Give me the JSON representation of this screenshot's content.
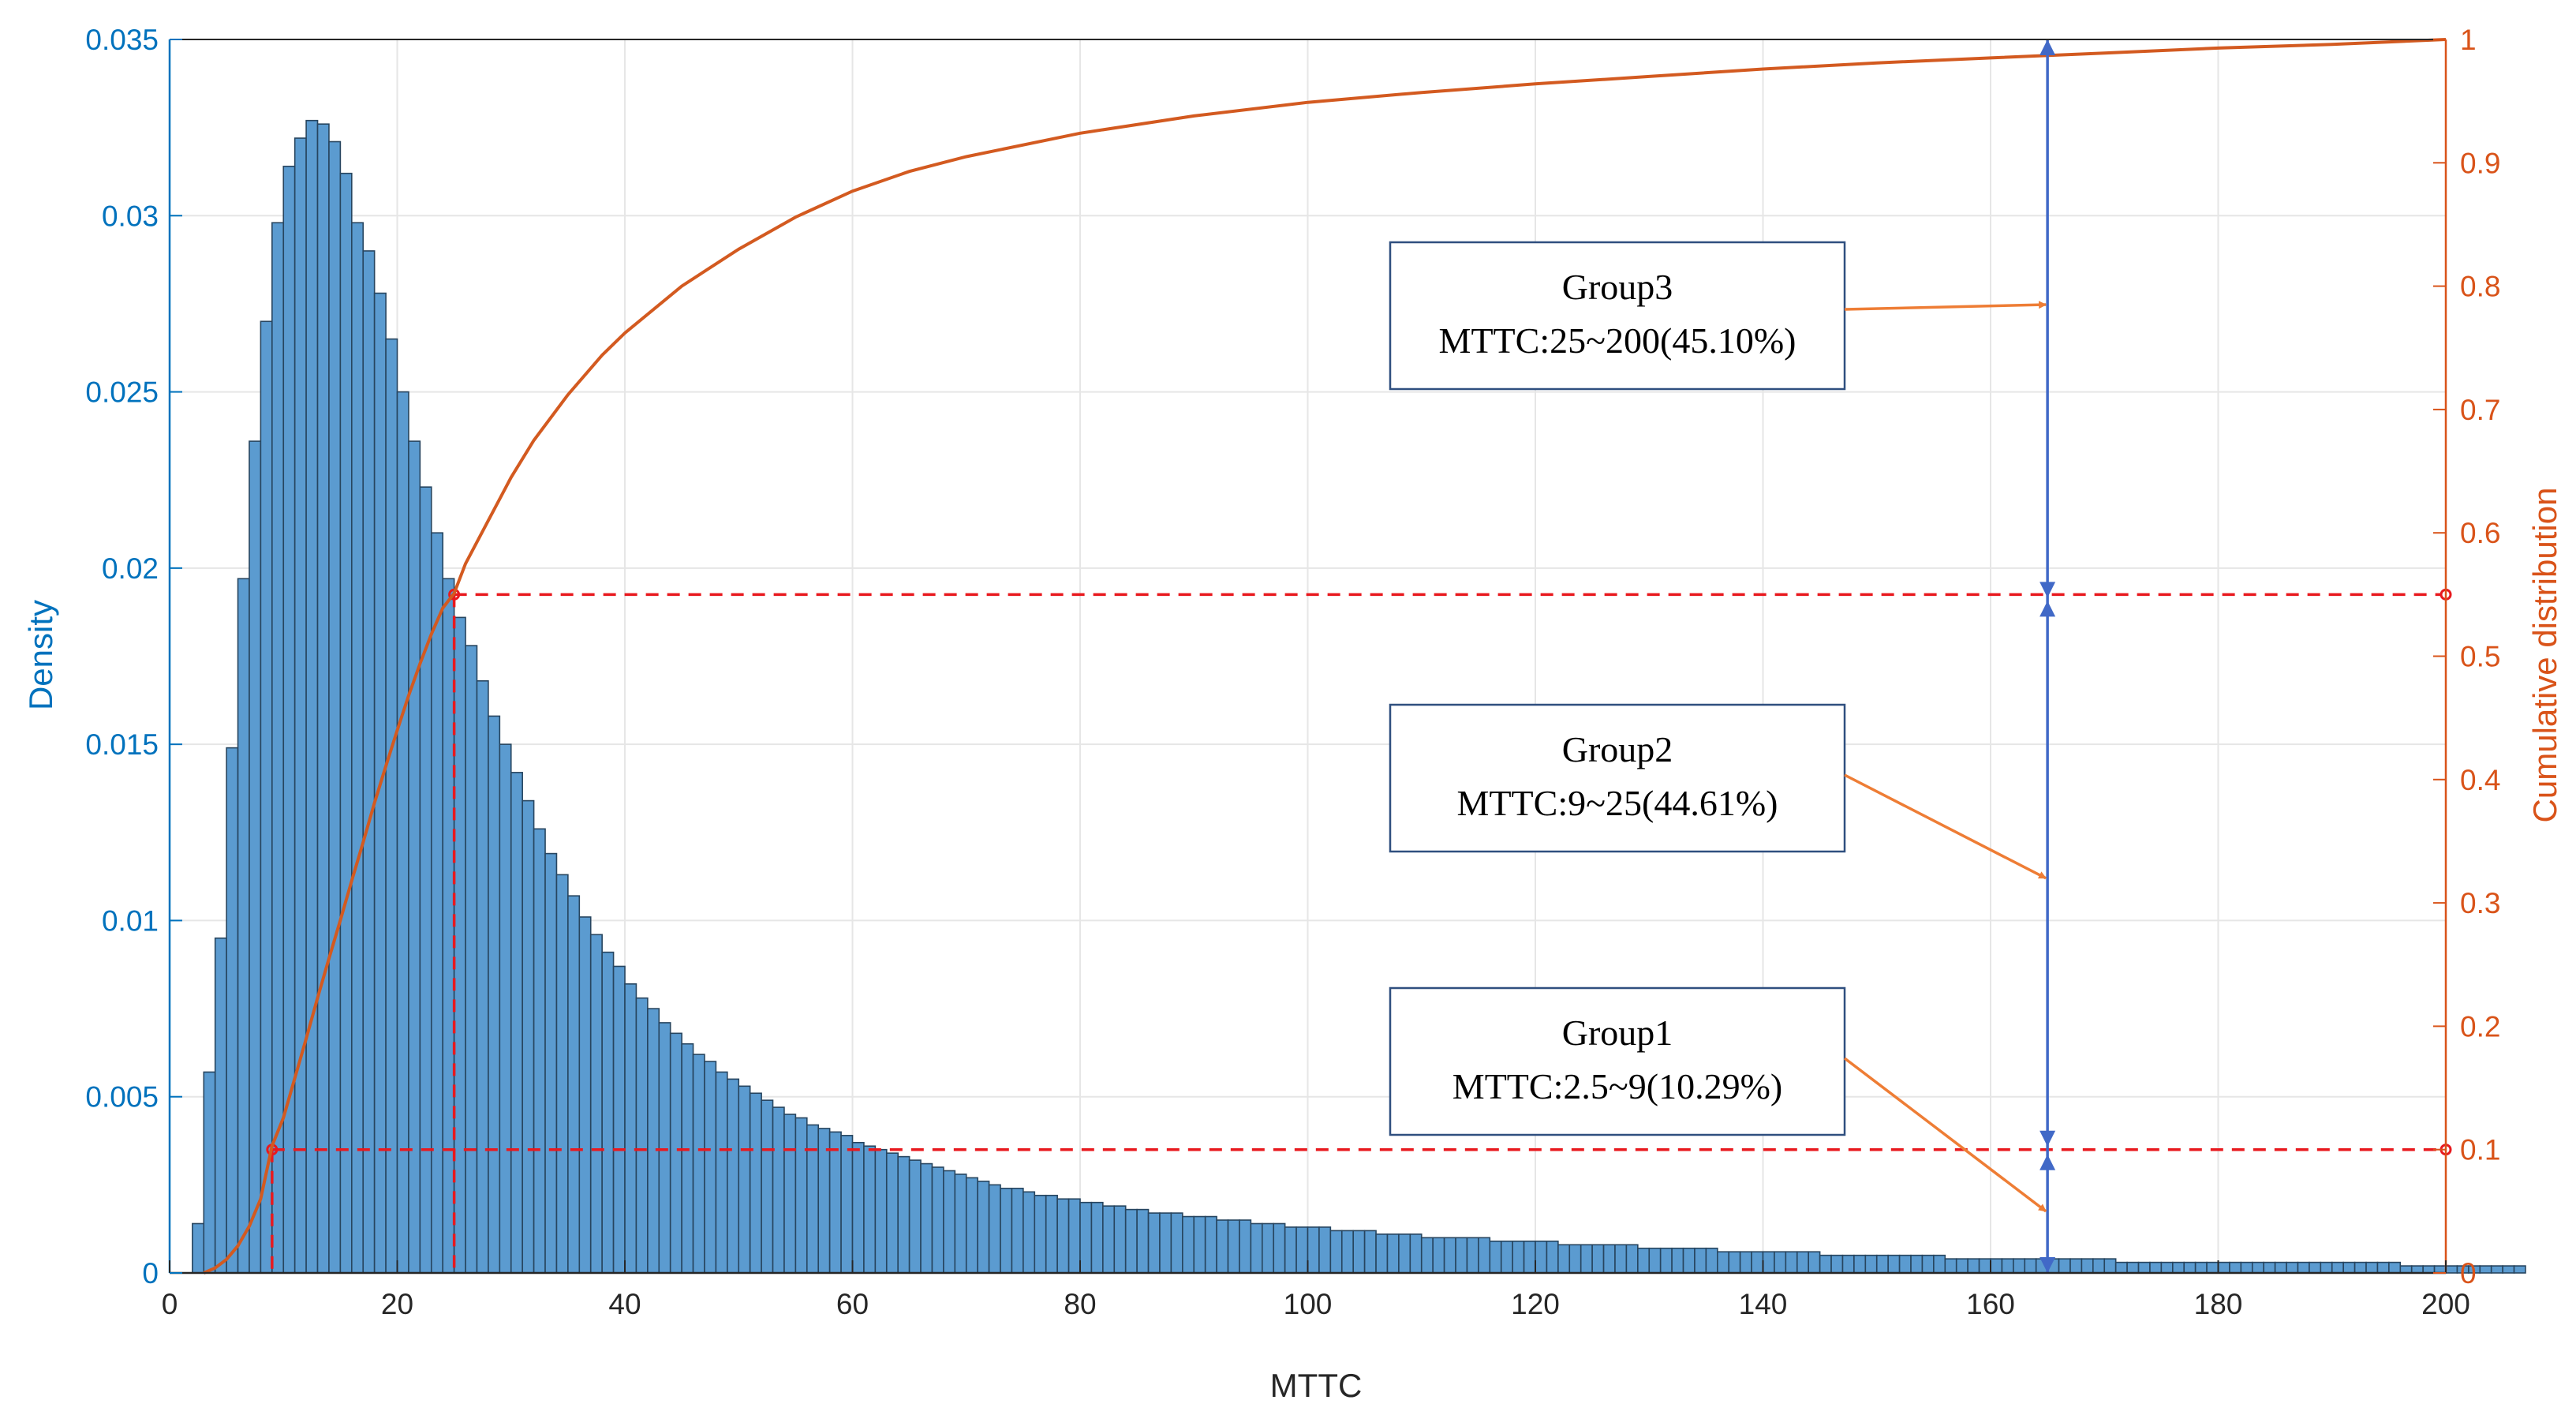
{
  "chart_data": {
    "type": "bar",
    "xlabel": "MTTC",
    "ylabel_left": "Density",
    "ylabel_right": "Cumulative distribution",
    "xlim": [
      0,
      200
    ],
    "ylim_left": [
      0,
      0.035
    ],
    "ylim_right": [
      0,
      1
    ],
    "grid": true,
    "x_ticks": [
      "0",
      "20",
      "40",
      "60",
      "80",
      "100",
      "120",
      "140",
      "160",
      "180",
      "200"
    ],
    "y_left_ticks": [
      "0",
      "0.005",
      "0.01",
      "0.015",
      "0.02",
      "0.025",
      "0.03",
      "0.035"
    ],
    "y_right_ticks": [
      "0",
      "0.1",
      "0.2",
      "0.3",
      "0.4",
      "0.5",
      "0.6",
      "0.7",
      "0.8",
      "0.9",
      "1"
    ],
    "histogram": {
      "name": "Density",
      "bin_width": 1,
      "bin_start": 2,
      "values": [
        0.0014,
        0.0057,
        0.0095,
        0.0149,
        0.0197,
        0.0236,
        0.027,
        0.0298,
        0.0314,
        0.0322,
        0.0327,
        0.0326,
        0.0321,
        0.0312,
        0.0298,
        0.029,
        0.0278,
        0.0265,
        0.025,
        0.0236,
        0.0223,
        0.021,
        0.0197,
        0.0186,
        0.0178,
        0.0168,
        0.0158,
        0.015,
        0.0142,
        0.0134,
        0.0126,
        0.0119,
        0.0113,
        0.0107,
        0.0101,
        0.0096,
        0.0091,
        0.0087,
        0.0082,
        0.0078,
        0.0075,
        0.0071,
        0.0068,
        0.0065,
        0.0062,
        0.006,
        0.0057,
        0.0055,
        0.0053,
        0.0051,
        0.0049,
        0.0047,
        0.0045,
        0.0044,
        0.0042,
        0.0041,
        0.004,
        0.0039,
        0.0037,
        0.0036,
        0.0035,
        0.0034,
        0.0033,
        0.0032,
        0.0031,
        0.003,
        0.0029,
        0.0028,
        0.0027,
        0.0026,
        0.0025,
        0.0024,
        0.0024,
        0.0023,
        0.0022,
        0.0022,
        0.0021,
        0.0021,
        0.002,
        0.002,
        0.0019,
        0.0019,
        0.0018,
        0.0018,
        0.0017,
        0.0017,
        0.0017,
        0.0016,
        0.0016,
        0.0016,
        0.0015,
        0.0015,
        0.0015,
        0.0014,
        0.0014,
        0.0014,
        0.0013,
        0.0013,
        0.0013,
        0.0013,
        0.0012,
        0.0012,
        0.0012,
        0.0012,
        0.0011,
        0.0011,
        0.0011,
        0.0011,
        0.001,
        0.001,
        0.001,
        0.001,
        0.001,
        0.001,
        0.0009,
        0.0009,
        0.0009,
        0.0009,
        0.0009,
        0.0009,
        0.0008,
        0.0008,
        0.0008,
        0.0008,
        0.0008,
        0.0008,
        0.0008,
        0.0007,
        0.0007,
        0.0007,
        0.0007,
        0.0007,
        0.0007,
        0.0007,
        0.0006,
        0.0006,
        0.0006,
        0.0006,
        0.0006,
        0.0006,
        0.0006,
        0.0006,
        0.0006,
        0.0005,
        0.0005,
        0.0005,
        0.0005,
        0.0005,
        0.0005,
        0.0005,
        0.0005,
        0.0005,
        0.0005,
        0.0005,
        0.0004,
        0.0004,
        0.0004,
        0.0004,
        0.0004,
        0.0004,
        0.0004,
        0.0004,
        0.0004,
        0.0004,
        0.0004,
        0.0004,
        0.0004,
        0.0004,
        0.0004,
        0.0003,
        0.0003,
        0.0003,
        0.0003,
        0.0003,
        0.0003,
        0.0003,
        0.0003,
        0.0003,
        0.0003,
        0.0003,
        0.0003,
        0.0003,
        0.0003,
        0.0003,
        0.0003,
        0.0003,
        0.0003,
        0.0003,
        0.0003,
        0.0003,
        0.0003,
        0.0003,
        0.0003,
        0.0003,
        0.0002,
        0.0002,
        0.0002,
        0.0002,
        0.0002,
        0.0002,
        0.0002,
        0.0002,
        0.0002,
        0.0002,
        0.0002
      ]
    },
    "cdf": {
      "name": "Cumulative distribution",
      "x": [
        3,
        4,
        5,
        6,
        7,
        8,
        9,
        10,
        11,
        12,
        13,
        14,
        15,
        16,
        17,
        18,
        19,
        20,
        21,
        22,
        23,
        24,
        25,
        26,
        28,
        30,
        32,
        35,
        38,
        40,
        45,
        50,
        55,
        60,
        65,
        70,
        80,
        90,
        100,
        110,
        120,
        130,
        140,
        150,
        160,
        170,
        180,
        190,
        200
      ],
      "y": [
        0,
        0.004,
        0.011,
        0.022,
        0.038,
        0.06,
        0.103,
        0.126,
        0.158,
        0.19,
        0.223,
        0.255,
        0.286,
        0.318,
        0.349,
        0.381,
        0.411,
        0.44,
        0.468,
        0.494,
        0.518,
        0.539,
        0.551,
        0.575,
        0.61,
        0.645,
        0.675,
        0.712,
        0.744,
        0.762,
        0.8,
        0.83,
        0.856,
        0.877,
        0.893,
        0.905,
        0.924,
        0.938,
        0.949,
        0.957,
        0.964,
        0.97,
        0.976,
        0.981,
        0.985,
        0.989,
        0.993,
        0.996,
        1.0
      ]
    },
    "reference_points": [
      {
        "x": 9,
        "cdf": 0.1
      },
      {
        "x": 25,
        "cdf": 0.55
      }
    ],
    "bracket_x": 165,
    "annotations": [
      {
        "line1": "Group3",
        "line2": "MTTC:25~200(45.10%)",
        "arrow_to": {
          "x": 165,
          "cdf": 0.785
        }
      },
      {
        "line1": "Group2",
        "line2": "MTTC:9~25(44.61%)",
        "arrow_to": {
          "x": 165,
          "cdf": 0.32
        }
      },
      {
        "line1": "Group1",
        "line2": "MTTC:2.5~9(10.29%)",
        "arrow_to": {
          "x": 165,
          "cdf": 0.05
        }
      }
    ],
    "colors": {
      "bar_fill": "#5b9bd0",
      "bar_edge": "#27455f",
      "left_axis": "#0072bd",
      "right_axis": "#d95319",
      "cdf_line": "#d35a20",
      "ref_line": "#e8191e",
      "bracket": "#4169c7",
      "arrow": "#ee7d35",
      "box_border": "#2f4f7f"
    }
  }
}
